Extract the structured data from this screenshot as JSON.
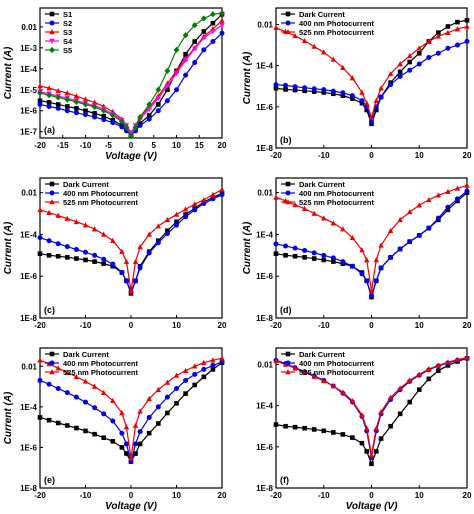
{
  "chart_data": [
    {
      "panel": "(a)",
      "type": "line",
      "xlabel": "Voltage (V)",
      "ylabel": "Current (A)",
      "xlim": [
        -20,
        20
      ],
      "ylim_log10": [
        -7.3,
        -1.1
      ],
      "log_y": true,
      "xticks": [
        "-20",
        "-15",
        "-10",
        "-5",
        "0",
        "5",
        "10",
        "15",
        "20"
      ],
      "yticks": [
        "1E-7",
        "1E-6",
        "1E-5",
        "1E-4",
        "1E-3",
        "0.01"
      ],
      "legend_position": "top-left",
      "x": [
        -20,
        -18,
        -16,
        -14,
        -12,
        -10,
        -8,
        -6,
        -4,
        -2,
        -1,
        0,
        1,
        2,
        4,
        6,
        8,
        10,
        12,
        14,
        16,
        18,
        20
      ],
      "series": [
        {
          "name": "S1",
          "color": "#000000",
          "marker": "square",
          "values": [
            3e-06,
            2.5e-06,
            2e-06,
            1.6e-06,
            1.3e-06,
            1e-06,
            7.5e-07,
            5.5e-07,
            3.5e-07,
            2e-07,
            1.3e-07,
            7e-08,
            1.3e-07,
            2.5e-07,
            6e-07,
            2e-06,
            1e-05,
            8e-05,
            0.0005,
            0.002,
            0.006,
            0.015,
            0.04
          ]
        },
        {
          "name": "S2",
          "color": "#0000ee",
          "marker": "circle",
          "values": [
            2e-06,
            1.6e-06,
            1.3e-06,
            1e-06,
            8e-07,
            6.5e-07,
            5e-07,
            3.8e-07,
            2.7e-07,
            1.7e-07,
            1.1e-07,
            7e-08,
            1.1e-07,
            2e-07,
            4e-07,
            1e-06,
            3e-06,
            1e-05,
            5e-05,
            0.0002,
            0.0008,
            0.002,
            0.005
          ]
        },
        {
          "name": "S3",
          "color": "#ee0000",
          "marker": "triangle",
          "values": [
            1.5e-05,
            1.2e-05,
            9e-06,
            7e-06,
            5e-06,
            3.5e-06,
            2.5e-06,
            1.6e-06,
            9e-07,
            4e-07,
            2e-07,
            8e-08,
            2e-07,
            5e-07,
            1.5e-06,
            5e-06,
            2e-05,
            8e-05,
            0.0003,
            0.001,
            0.0035,
            0.008,
            0.02
          ]
        },
        {
          "name": "S4",
          "color": "#ff00ff",
          "marker": "triangle-down",
          "values": [
            8e-06,
            6.5e-06,
            5e-06,
            4e-06,
            3e-06,
            2.3e-06,
            1.7e-06,
            1.2e-06,
            7e-07,
            3.5e-07,
            2e-07,
            9e-08,
            2e-07,
            4e-07,
            1.2e-06,
            4e-06,
            1.5e-05,
            6e-05,
            0.00025,
            0.0009,
            0.003,
            0.006,
            0.012
          ]
        },
        {
          "name": "S5",
          "color": "#008000",
          "marker": "diamond",
          "values": [
            7e-06,
            5.5e-06,
            4.3e-06,
            3.4e-06,
            2.6e-06,
            2e-06,
            1.5e-06,
            1e-06,
            6e-07,
            3e-07,
            1.6e-07,
            6e-08,
            1.6e-07,
            5e-07,
            2e-06,
            1e-05,
            8e-05,
            0.0008,
            0.004,
            0.012,
            0.025,
            0.04,
            0.045
          ]
        }
      ]
    },
    {
      "panel": "(b)",
      "type": "line",
      "xlabel": "",
      "ylabel": "Current (A)",
      "xlim": [
        -20,
        20
      ],
      "ylim_log10": [
        -8,
        -1.2
      ],
      "log_y": true,
      "xticks": [
        "-20",
        "-10",
        "0",
        "10",
        "20"
      ],
      "yticks": [
        "1E-8",
        "1E-6",
        "1E-4",
        "0.01"
      ],
      "legend_position": "top-left",
      "x": [
        -20,
        -18,
        -16,
        -14,
        -12,
        -10,
        -8,
        -6,
        -4,
        -2,
        -1,
        0,
        1,
        2,
        4,
        6,
        8,
        10,
        12,
        14,
        16,
        18,
        20
      ],
      "series": [
        {
          "name": "Dark Current",
          "color": "#000000",
          "marker": "square",
          "values": [
            8e-06,
            7e-06,
            6.5e-06,
            6e-06,
            5.5e-06,
            5e-06,
            4.3e-06,
            3.5e-06,
            2.5e-06,
            1.5e-06,
            7e-07,
            1.5e-07,
            7e-07,
            3e-06,
            1.5e-05,
            5e-05,
            0.00015,
            0.0004,
            0.0015,
            0.004,
            0.008,
            0.013,
            0.016
          ]
        },
        {
          "name": "400 nm Photocurrent",
          "color": "#0000ee",
          "marker": "circle",
          "values": [
            1.2e-05,
            1.1e-05,
            9.5e-06,
            8.5e-06,
            7.5e-06,
            6.8e-06,
            5.8e-06,
            4.8e-06,
            3.5e-06,
            2e-06,
            1e-06,
            2e-07,
            1e-06,
            3e-06,
            1.2e-05,
            3e-05,
            6e-05,
            0.00012,
            0.00025,
            0.0004,
            0.0007,
            0.001,
            0.0015
          ]
        },
        {
          "name": "525 nm Photocurrent",
          "color": "#ee0000",
          "marker": "triangle",
          "values": [
            0.007,
            0.0045,
            0.0028,
            0.0016,
            0.00085,
            0.00045,
            0.0002,
            8e-05,
            2.5e-05,
            5e-06,
            1.5e-06,
            3e-07,
            2e-06,
            8e-06,
            4e-05,
            0.00012,
            0.0003,
            0.0007,
            0.0015,
            0.0027,
            0.004,
            0.006,
            0.008
          ]
        }
      ]
    },
    {
      "panel": "(c)",
      "type": "line",
      "xlabel": "",
      "ylabel": "Current (A)",
      "xlim": [
        -20,
        20
      ],
      "ylim_log10": [
        -8,
        -1.3
      ],
      "log_y": true,
      "xticks": [
        "-20",
        "-10",
        "0",
        "10",
        "20"
      ],
      "yticks": [
        "1E-8",
        "1E-6",
        "1E-4",
        "0.01"
      ],
      "legend_position": "top-left",
      "x": [
        -20,
        -18,
        -16,
        -14,
        -12,
        -10,
        -8,
        -6,
        -4,
        -2,
        -1,
        0,
        1,
        2,
        4,
        6,
        8,
        10,
        12,
        14,
        16,
        18,
        20
      ],
      "series": [
        {
          "name": "Dark Current",
          "color": "#000000",
          "marker": "square",
          "values": [
            1.2e-05,
            1e-05,
            9e-06,
            8e-06,
            7e-06,
            6e-06,
            5e-06,
            4e-06,
            3e-06,
            1.5e-06,
            6e-07,
            1.5e-07,
            6e-07,
            3e-06,
            1.5e-05,
            5e-05,
            0.00015,
            0.0004,
            0.0009,
            0.0018,
            0.0035,
            0.006,
            0.009
          ]
        },
        {
          "name": "400 nm Photocurrent",
          "color": "#0000ee",
          "marker": "circle",
          "values": [
            7e-05,
            5e-05,
            3.6e-05,
            2.6e-05,
            1.9e-05,
            1.4e-05,
            1e-05,
            6.5e-06,
            3.8e-06,
            1.5e-06,
            6e-07,
            1.8e-07,
            6e-07,
            2.5e-06,
            1.3e-05,
            4e-05,
            0.00011,
            0.00028,
            0.0007,
            0.0015,
            0.003,
            0.005,
            0.008
          ]
        },
        {
          "name": "525 nm Photocurrent",
          "color": "#ee0000",
          "marker": "triangle",
          "values": [
            0.0015,
            0.0011,
            0.0008,
            0.00057,
            0.0004,
            0.00028,
            0.00018,
            0.0001,
            5e-05,
            1.5e-05,
            5e-06,
            2e-07,
            5e-06,
            2.5e-05,
            0.0001,
            0.00025,
            0.0005,
            0.0009,
            0.0016,
            0.0028,
            0.0045,
            0.008,
            0.014
          ]
        }
      ]
    },
    {
      "panel": "(d)",
      "type": "line",
      "xlabel": "",
      "ylabel": "Current (A)",
      "xlim": [
        -20,
        20
      ],
      "ylim_log10": [
        -8,
        -1.3
      ],
      "log_y": true,
      "xticks": [
        "-20",
        "-10",
        "0",
        "10",
        "20"
      ],
      "yticks": [
        "1E-8",
        "1E-6",
        "1E-4",
        "0.01"
      ],
      "legend_position": "top-left",
      "x": [
        -20,
        -18,
        -16,
        -14,
        -12,
        -10,
        -8,
        -6,
        -4,
        -2,
        -1,
        0,
        1,
        2,
        4,
        6,
        8,
        10,
        12,
        14,
        16,
        18,
        20
      ],
      "series": [
        {
          "name": "Dark Current",
          "color": "#000000",
          "marker": "square",
          "values": [
            1.2e-05,
            1e-05,
            9e-06,
            8e-06,
            7e-06,
            6e-06,
            5e-06,
            4e-06,
            3e-06,
            1.5e-06,
            6e-07,
            1e-07,
            6e-07,
            2.5e-06,
            8e-06,
            2e-05,
            4.5e-05,
            9e-05,
            0.0002,
            0.0005,
            0.0015,
            0.004,
            0.01
          ]
        },
        {
          "name": "400 nm Photocurrent",
          "color": "#0000ee",
          "marker": "circle",
          "values": [
            3.5e-05,
            2.8e-05,
            2.2e-05,
            1.7e-05,
            1.3e-05,
            1e-05,
            7.5e-06,
            5e-06,
            3e-06,
            1.3e-06,
            6e-07,
            1.2e-07,
            6e-07,
            2.5e-06,
            8e-06,
            2e-05,
            4.5e-05,
            9e-05,
            0.0002,
            0.0006,
            0.002,
            0.005,
            0.012
          ]
        },
        {
          "name": "525 nm Photocurrent",
          "color": "#ee0000",
          "marker": "triangle",
          "values": [
            0.006,
            0.004,
            0.0026,
            0.0017,
            0.001,
            0.0006,
            0.00035,
            0.00018,
            7e-05,
            1.8e-05,
            6e-06,
            2e-07,
            6e-06,
            3e-05,
            0.00015,
            0.0005,
            0.0012,
            0.0025,
            0.0045,
            0.0075,
            0.011,
            0.016,
            0.022
          ]
        }
      ]
    },
    {
      "panel": "(e)",
      "type": "line",
      "xlabel": "Voltage (V)",
      "ylabel": "Current (A)",
      "xlim": [
        -20,
        20
      ],
      "ylim_log10": [
        -8,
        -1.1
      ],
      "log_y": true,
      "xticks": [
        "-20",
        "-10",
        "0",
        "10",
        "20"
      ],
      "yticks": [
        "1E-8",
        "1E-6",
        "1E-4",
        "0.01"
      ],
      "legend_position": "top-left",
      "x": [
        -20,
        -18,
        -16,
        -14,
        -12,
        -10,
        -8,
        -6,
        -4,
        -2,
        -1,
        0,
        1,
        2,
        4,
        6,
        8,
        10,
        12,
        14,
        16,
        18,
        20
      ],
      "series": [
        {
          "name": "Dark Current",
          "color": "#000000",
          "marker": "square",
          "values": [
            3e-05,
            2.2e-05,
            1.6e-05,
            1.2e-05,
            9e-06,
            6.5e-06,
            4.5e-06,
            3e-06,
            2e-06,
            1e-06,
            5e-07,
            2e-07,
            5e-07,
            1.5e-06,
            5e-06,
            1.5e-05,
            5e-05,
            0.00015,
            0.00045,
            0.0012,
            0.003,
            0.007,
            0.015
          ]
        },
        {
          "name": "400 nm Photocurrent",
          "color": "#0000ee",
          "marker": "circle",
          "values": [
            0.002,
            0.0013,
            0.0008,
            0.0005,
            0.0003,
            0.00017,
            9e-05,
            4.5e-05,
            2e-05,
            5e-06,
            1.5e-06,
            2e-07,
            1.5e-06,
            6e-06,
            3e-05,
            0.0001,
            0.0003,
            0.0008,
            0.002,
            0.004,
            0.007,
            0.011,
            0.016
          ]
        },
        {
          "name": "525 nm Photocurrent",
          "color": "#ee0000",
          "marker": "triangle",
          "values": [
            0.02,
            0.013,
            0.008,
            0.005,
            0.003,
            0.0018,
            0.001,
            0.0005,
            0.0002,
            5e-05,
            1e-05,
            3e-07,
            1.2e-05,
            6e-05,
            0.00025,
            0.0007,
            0.0016,
            0.0035,
            0.006,
            0.01,
            0.015,
            0.02,
            0.025
          ]
        }
      ]
    },
    {
      "panel": "(f)",
      "type": "line",
      "xlabel": "Voltage (V)",
      "ylabel": "",
      "xlim": [
        -20,
        20
      ],
      "ylim_log10": [
        -8,
        -1.2
      ],
      "log_y": true,
      "xticks": [
        "-20",
        "-10",
        "0",
        "10",
        "20"
      ],
      "yticks": [
        "1E-8",
        "1E-6",
        "1E-4",
        "0.01"
      ],
      "legend_position": "top-left",
      "x": [
        -20,
        -18,
        -16,
        -14,
        -12,
        -10,
        -8,
        -6,
        -4,
        -2,
        -1,
        0,
        1,
        2,
        4,
        6,
        8,
        10,
        12,
        14,
        16,
        18,
        20
      ],
      "series": [
        {
          "name": "Dark Current",
          "color": "#000000",
          "marker": "square",
          "values": [
            1.2e-05,
            1e-05,
            9e-06,
            8e-06,
            7e-06,
            6e-06,
            5e-06,
            4e-06,
            2.8e-06,
            1.5e-06,
            6e-07,
            1.5e-07,
            6e-07,
            2.5e-06,
            1e-05,
            4e-05,
            0.00015,
            0.0006,
            0.002,
            0.005,
            0.009,
            0.014,
            0.02
          ]
        },
        {
          "name": "400 nm Photocurrent",
          "color": "#0000ee",
          "marker": "circle",
          "values": [
            0.016,
            0.011,
            0.007,
            0.0045,
            0.0028,
            0.0017,
            0.0009,
            0.0004,
            0.00015,
            3e-05,
            6e-06,
            3e-07,
            6e-06,
            4e-05,
            0.0002,
            0.0006,
            0.0015,
            0.003,
            0.0055,
            0.0085,
            0.012,
            0.016,
            0.02
          ]
        },
        {
          "name": "525 nm Photocurrent",
          "color": "#ee0000",
          "marker": "triangle",
          "values": [
            0.015,
            0.01,
            0.0065,
            0.0042,
            0.0026,
            0.0016,
            0.0009,
            0.00045,
            0.00017,
            3.5e-05,
            8e-06,
            4e-07,
            8e-06,
            5e-05,
            0.00025,
            0.0007,
            0.0017,
            0.0033,
            0.006,
            0.009,
            0.013,
            0.017,
            0.022
          ]
        }
      ]
    }
  ]
}
